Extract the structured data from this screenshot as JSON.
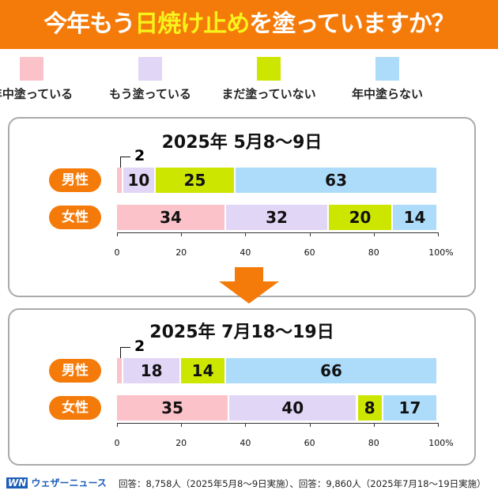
{
  "title": {
    "pre": "今年もう",
    "highlight": "日焼け止め",
    "post": "を塗っていますか？"
  },
  "legend": [
    {
      "label": "年中塗っている",
      "color": "#fcc2c9"
    },
    {
      "label": "もう塗っている",
      "color": "#e2d6f7"
    },
    {
      "label": "まだ塗っていない",
      "color": "#cde600"
    },
    {
      "label": "年中塗らない",
      "color": "#addcfa"
    }
  ],
  "chart_data": [
    {
      "type": "bar",
      "title": "2025年 5月8〜9日",
      "categories": [
        "男性",
        "女性"
      ],
      "series": [
        {
          "name": "年中塗っている",
          "values": [
            2,
            34
          ]
        },
        {
          "name": "もう塗っている",
          "values": [
            10,
            32
          ]
        },
        {
          "name": "まだ塗っていない",
          "values": [
            25,
            20
          ]
        },
        {
          "name": "年中塗らない",
          "values": [
            63,
            14
          ]
        }
      ],
      "xticks": [
        "0",
        "20",
        "40",
        "60",
        "80",
        "100%"
      ],
      "xlim": [
        0,
        100
      ]
    },
    {
      "type": "bar",
      "title": "2025年 7月18〜19日",
      "categories": [
        "男性",
        "女性"
      ],
      "series": [
        {
          "name": "年中塗っている",
          "values": [
            2,
            35
          ]
        },
        {
          "name": "もう塗っている",
          "values": [
            18,
            40
          ]
        },
        {
          "name": "まだ塗っていない",
          "values": [
            14,
            8
          ]
        },
        {
          "name": "年中塗らない",
          "values": [
            66,
            17
          ]
        }
      ],
      "xticks": [
        "0",
        "20",
        "40",
        "60",
        "80",
        "100%"
      ],
      "xlim": [
        0,
        100
      ]
    }
  ],
  "footer": {
    "brand": "ウェザーニュース",
    "note": "回答：8,758人（2025年5月8〜9日実施）、回答：9,860人（2025年7月18〜19日実施）"
  }
}
